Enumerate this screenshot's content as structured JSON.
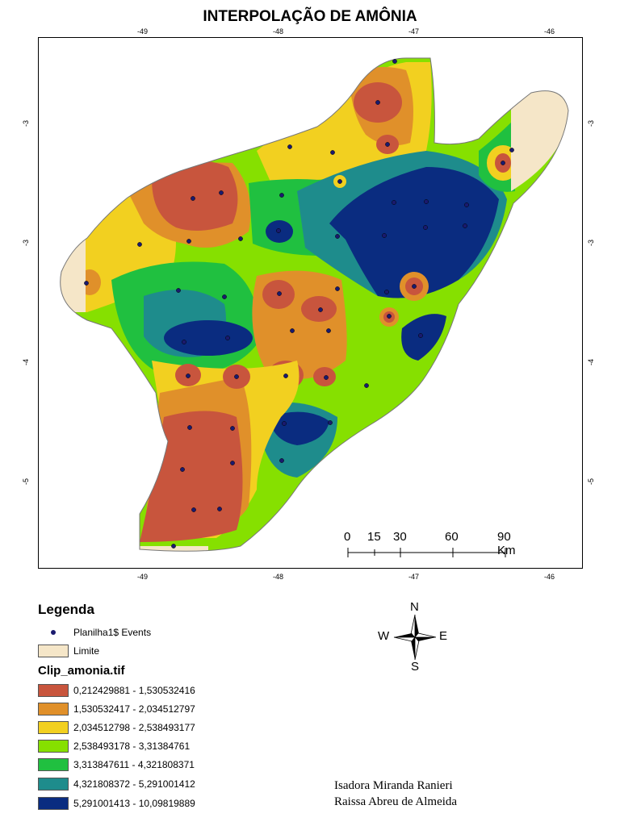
{
  "title": "INTERPOLAÇÃO DE AMÔNIA",
  "axes": {
    "x_ticks": [
      "-49",
      "-48",
      "-47",
      "-46"
    ],
    "y_ticks": [
      "-3",
      "-3",
      "-4",
      "-5"
    ]
  },
  "scalebar": {
    "labels": [
      "0",
      "15",
      "30",
      "60",
      "90 Km"
    ]
  },
  "compass": {
    "n": "N",
    "s": "S",
    "e": "E",
    "w": "W"
  },
  "legend": {
    "title": "Legenda",
    "events_label": "Planilha1$ Events",
    "limit_label": "Limite",
    "raster_title": "Clip_amonia.tif",
    "classes": [
      {
        "label": "0,212429881 - 1,530532416",
        "color": "#c8553d"
      },
      {
        "label": "1,530532417 - 2,034512797",
        "color": "#e0902a"
      },
      {
        "label": "2,034512798 - 2,538493177",
        "color": "#f2d020"
      },
      {
        "label": "2,538493178 - 3,31384761",
        "color": "#86e000"
      },
      {
        "label": "3,313847611 - 4,321808371",
        "color": "#20c040"
      },
      {
        "label": "4,321808372 - 5,291001412",
        "color": "#1e8c8c"
      },
      {
        "label": "5,291001413 - 10,09819889",
        "color": "#0a2c80"
      }
    ],
    "limit_color": "#f5e6c8",
    "event_color": "#1a1a6e"
  },
  "authors": [
    "Isadora Miranda Ranieri",
    "Raissa Abreu de Almeida"
  ]
}
